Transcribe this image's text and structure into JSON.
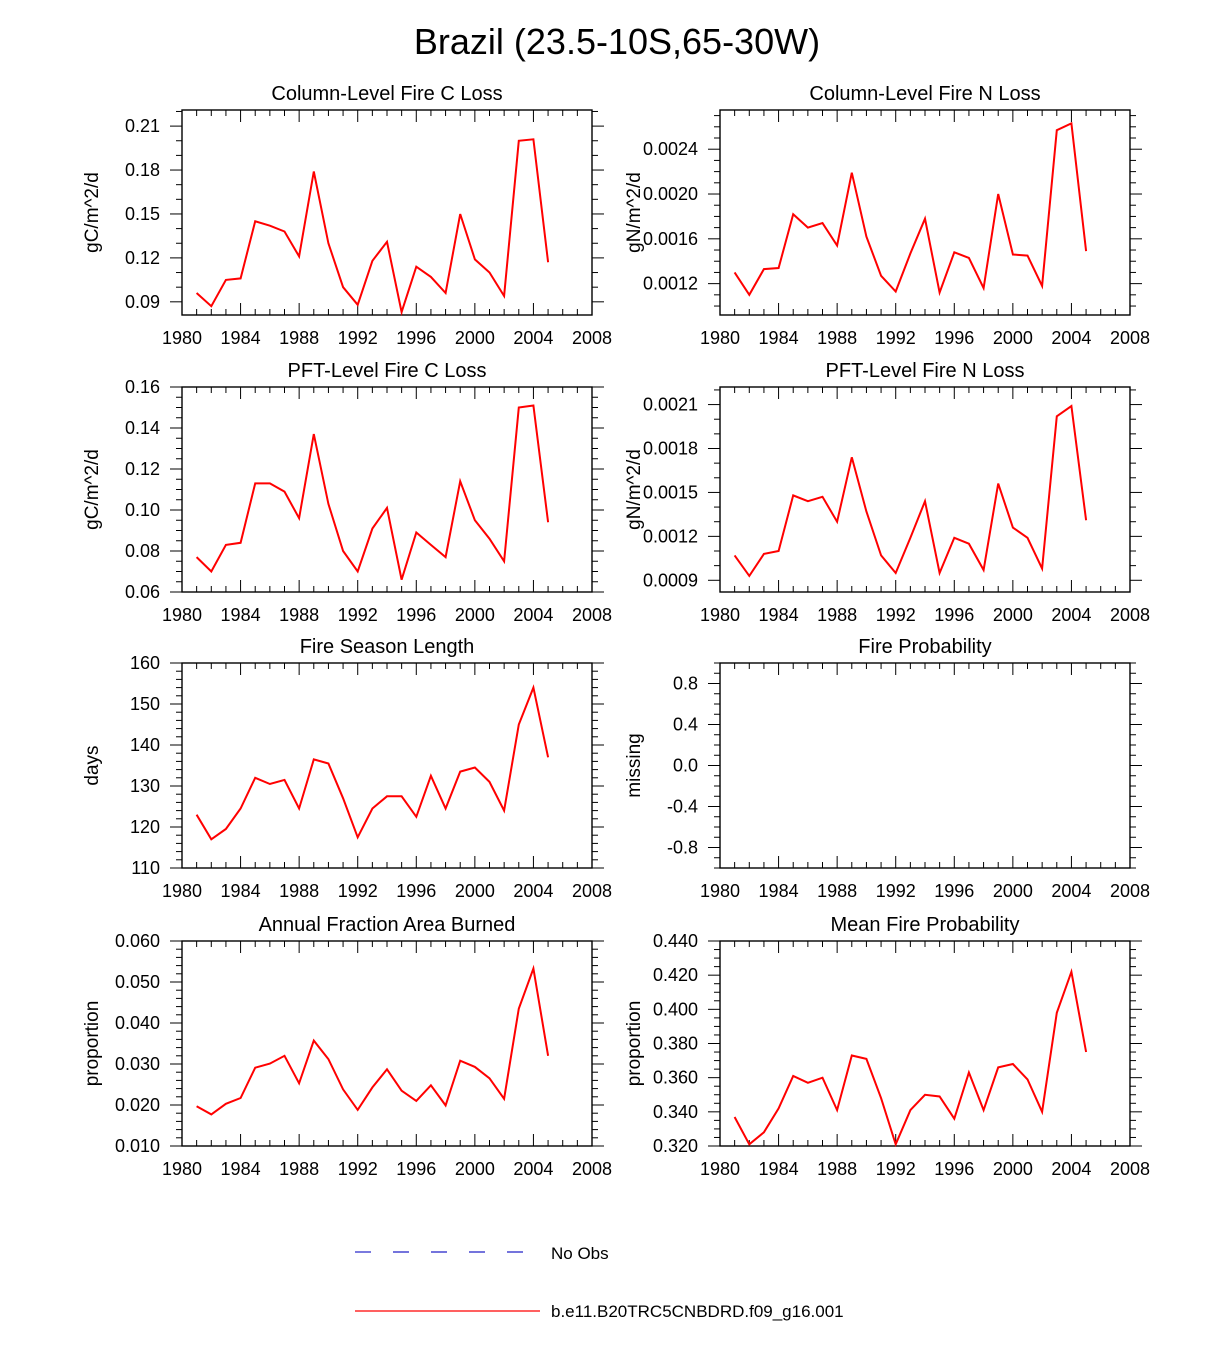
{
  "title": "Brazil (23.5-10S,65-30W)",
  "x_ticks": [
    "1980",
    "1984",
    "1988",
    "1992",
    "1996",
    "2000",
    "2004",
    "2008"
  ],
  "legend": {
    "obs_label": "No Obs",
    "model_label": "b.e11.B20TRC5CNBDRD.f09_g16.001",
    "obs_color": "#2020c8",
    "model_color": "#ff0000"
  },
  "chart_data": [
    {
      "id": "col-fire-c",
      "type": "line",
      "title": "Column-Level Fire C Loss",
      "ylabel": "gC/m^2/d",
      "xlim": [
        1980,
        2008
      ],
      "ylim": [
        0.081,
        0.221
      ],
      "yticks": [
        0.09,
        0.12,
        0.15,
        0.18,
        0.21
      ],
      "ytick_labels": [
        "0.09",
        "0.12",
        "0.15",
        "0.18",
        "0.21"
      ],
      "yminor": 0.01,
      "x": [
        1981,
        1982,
        1983,
        1984,
        1985,
        1986,
        1987,
        1988,
        1989,
        1990,
        1991,
        1992,
        1993,
        1994,
        1995,
        1996,
        1997,
        1998,
        1999,
        2000,
        2001,
        2002,
        2003,
        2004,
        2005
      ],
      "values": [
        0.096,
        0.087,
        0.105,
        0.106,
        0.145,
        0.142,
        0.138,
        0.121,
        0.179,
        0.13,
        0.1,
        0.088,
        0.118,
        0.131,
        0.083,
        0.114,
        0.107,
        0.096,
        0.15,
        0.119,
        0.11,
        0.094,
        0.2,
        0.201,
        0.117
      ]
    },
    {
      "id": "col-fire-n",
      "type": "line",
      "title": "Column-Level Fire N Loss",
      "ylabel": "gN/m^2/d",
      "xlim": [
        1980,
        2008
      ],
      "ylim": [
        0.00092,
        0.00275
      ],
      "yticks": [
        0.0012,
        0.0016,
        0.002,
        0.0024
      ],
      "ytick_labels": [
        "0.0012",
        "0.0016",
        "0.0020",
        "0.0024"
      ],
      "yminor": 0.0001,
      "x": [
        1981,
        1982,
        1983,
        1984,
        1985,
        1986,
        1987,
        1988,
        1989,
        1990,
        1991,
        1992,
        1993,
        1994,
        1995,
        1996,
        1997,
        1998,
        1999,
        2000,
        2001,
        2002,
        2003,
        2004,
        2005
      ],
      "values": [
        0.0013,
        0.0011,
        0.00133,
        0.00134,
        0.00182,
        0.0017,
        0.00174,
        0.00154,
        0.00219,
        0.00162,
        0.00127,
        0.00113,
        0.00147,
        0.00178,
        0.00112,
        0.00148,
        0.00143,
        0.00116,
        0.002,
        0.00146,
        0.00145,
        0.00118,
        0.00257,
        0.00263,
        0.00149
      ]
    },
    {
      "id": "pft-fire-c",
      "type": "line",
      "title": "PFT-Level Fire C Loss",
      "ylabel": "gC/m^2/d",
      "xlim": [
        1980,
        2008
      ],
      "ylim": [
        0.06,
        0.16
      ],
      "yticks": [
        0.06,
        0.08,
        0.1,
        0.12,
        0.14,
        0.16
      ],
      "ytick_labels": [
        "0.06",
        "0.08",
        "0.10",
        "0.12",
        "0.14",
        "0.16"
      ],
      "yminor": 0.005,
      "x": [
        1981,
        1982,
        1983,
        1984,
        1985,
        1986,
        1987,
        1988,
        1989,
        1990,
        1991,
        1992,
        1993,
        1994,
        1995,
        1996,
        1997,
        1998,
        1999,
        2000,
        2001,
        2002,
        2003,
        2004,
        2005
      ],
      "values": [
        0.077,
        0.07,
        0.083,
        0.084,
        0.113,
        0.113,
        0.109,
        0.096,
        0.137,
        0.103,
        0.08,
        0.07,
        0.091,
        0.101,
        0.066,
        0.089,
        0.083,
        0.077,
        0.114,
        0.095,
        0.086,
        0.075,
        0.15,
        0.151,
        0.094
      ]
    },
    {
      "id": "pft-fire-n",
      "type": "line",
      "title": "PFT-Level Fire N Loss",
      "ylabel": "gN/m^2/d",
      "xlim": [
        1980,
        2008
      ],
      "ylim": [
        0.00082,
        0.00222
      ],
      "yticks": [
        0.0009,
        0.0012,
        0.0015,
        0.0018,
        0.0021
      ],
      "ytick_labels": [
        "0.0009",
        "0.0012",
        "0.0015",
        "0.0018",
        "0.0021"
      ],
      "yminor": 0.0001,
      "x": [
        1981,
        1982,
        1983,
        1984,
        1985,
        1986,
        1987,
        1988,
        1989,
        1990,
        1991,
        1992,
        1993,
        1994,
        1995,
        1996,
        1997,
        1998,
        1999,
        2000,
        2001,
        2002,
        2003,
        2004,
        2005
      ],
      "values": [
        0.00107,
        0.00093,
        0.00108,
        0.0011,
        0.00148,
        0.00144,
        0.00147,
        0.0013,
        0.00174,
        0.00137,
        0.00107,
        0.00095,
        0.00119,
        0.00144,
        0.00095,
        0.00119,
        0.00115,
        0.00097,
        0.00156,
        0.00126,
        0.00119,
        0.00098,
        0.00202,
        0.00209,
        0.00131
      ]
    },
    {
      "id": "fire-season-length",
      "type": "line",
      "title": "Fire Season Length",
      "ylabel": "days",
      "xlim": [
        1980,
        2008
      ],
      "ylim": [
        110,
        160
      ],
      "yticks": [
        110,
        120,
        130,
        140,
        150,
        160
      ],
      "ytick_labels": [
        "110",
        "120",
        "130",
        "140",
        "150",
        "160"
      ],
      "yminor": 2,
      "x": [
        1981,
        1982,
        1983,
        1984,
        1985,
        1986,
        1987,
        1988,
        1989,
        1990,
        1991,
        1992,
        1993,
        1994,
        1995,
        1996,
        1997,
        1998,
        1999,
        2000,
        2001,
        2002,
        2003,
        2004,
        2005
      ],
      "values": [
        123,
        117,
        119.5,
        124.5,
        132,
        130.5,
        131.5,
        124.5,
        136.5,
        135.5,
        127,
        117.5,
        124.5,
        127.5,
        127.5,
        122.5,
        132.5,
        124.5,
        133.5,
        134.5,
        131,
        124,
        145,
        154,
        137
      ]
    },
    {
      "id": "fire-probability",
      "type": "line",
      "title": "Fire Probability",
      "ylabel": "missing",
      "xlim": [
        1980,
        2008
      ],
      "ylim": [
        -1.0,
        1.0
      ],
      "yticks": [
        -0.8,
        -0.4,
        0.0,
        0.4,
        0.8
      ],
      "ytick_labels": [
        "-0.8",
        "-0.4",
        "0.0",
        "0.4",
        "0.8"
      ],
      "yminor": 0.1,
      "x": [],
      "values": []
    },
    {
      "id": "annual-fraction-area-burned",
      "type": "line",
      "title": "Annual Fraction Area Burned",
      "ylabel": "proportion",
      "xlim": [
        1980,
        2008
      ],
      "ylim": [
        0.01,
        0.06
      ],
      "yticks": [
        0.01,
        0.02,
        0.03,
        0.04,
        0.05,
        0.06
      ],
      "ytick_labels": [
        "0.010",
        "0.020",
        "0.030",
        "0.040",
        "0.050",
        "0.060"
      ],
      "yminor": 0.002,
      "x": [
        1981,
        1982,
        1983,
        1984,
        1985,
        1986,
        1987,
        1988,
        1989,
        1990,
        1991,
        1992,
        1993,
        1994,
        1995,
        1996,
        1997,
        1998,
        1999,
        2000,
        2001,
        2002,
        2003,
        2004,
        2005
      ],
      "values": [
        0.0197,
        0.0177,
        0.0203,
        0.0217,
        0.0291,
        0.0301,
        0.032,
        0.0253,
        0.0357,
        0.0312,
        0.0238,
        0.0188,
        0.0243,
        0.0287,
        0.0235,
        0.021,
        0.0248,
        0.0199,
        0.0308,
        0.0293,
        0.0265,
        0.0215,
        0.0435,
        0.0533,
        0.032
      ]
    },
    {
      "id": "mean-fire-probability",
      "type": "line",
      "title": "Mean Fire Probability",
      "ylabel": "proportion",
      "xlim": [
        1980,
        2008
      ],
      "ylim": [
        0.32,
        0.44
      ],
      "yticks": [
        0.32,
        0.34,
        0.36,
        0.38,
        0.4,
        0.42,
        0.44
      ],
      "ytick_labels": [
        "0.320",
        "0.340",
        "0.360",
        "0.380",
        "0.400",
        "0.420",
        "0.440"
      ],
      "yminor": 0.005,
      "x": [
        1981,
        1982,
        1983,
        1984,
        1985,
        1986,
        1987,
        1988,
        1989,
        1990,
        1991,
        1992,
        1993,
        1994,
        1995,
        1996,
        1997,
        1998,
        1999,
        2000,
        2001,
        2002,
        2003,
        2004,
        2005
      ],
      "values": [
        0.337,
        0.321,
        0.328,
        0.342,
        0.361,
        0.357,
        0.36,
        0.341,
        0.373,
        0.371,
        0.348,
        0.321,
        0.341,
        0.35,
        0.349,
        0.336,
        0.363,
        0.341,
        0.366,
        0.368,
        0.359,
        0.34,
        0.398,
        0.422,
        0.375
      ]
    }
  ]
}
